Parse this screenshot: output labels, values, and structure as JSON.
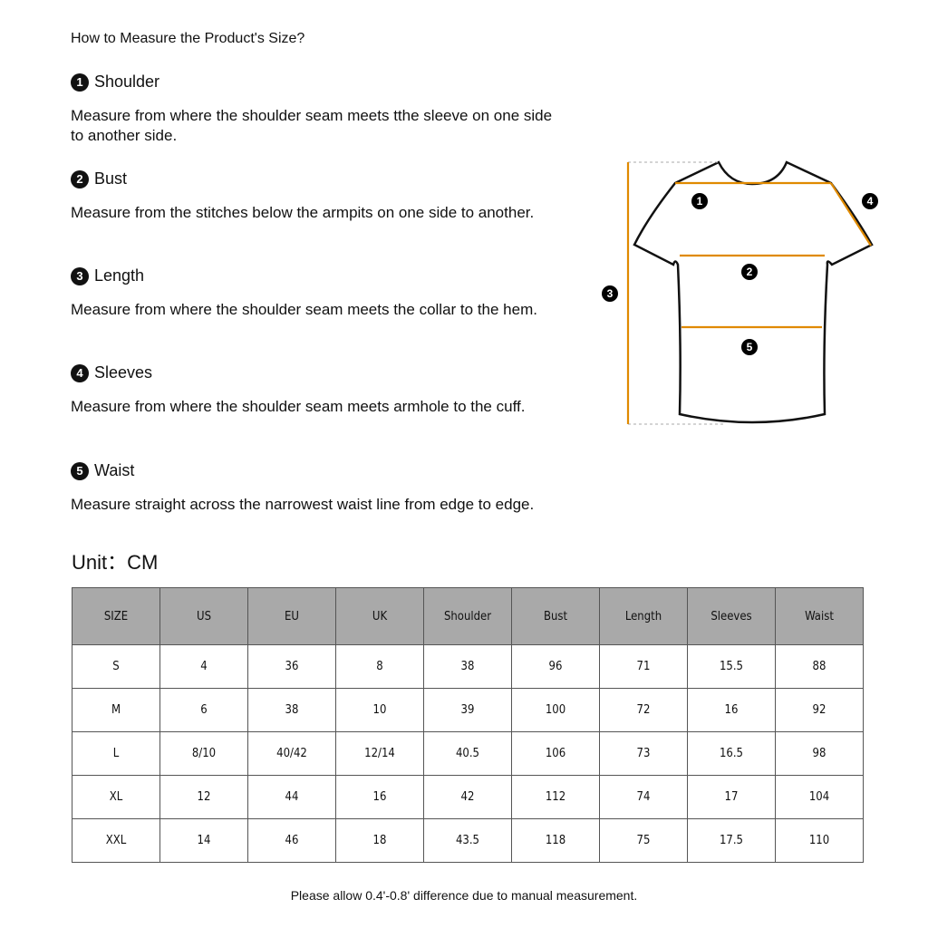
{
  "title": "How to Measure the Product's Size?",
  "sections": [
    {
      "num": "1",
      "heading": "Shoulder",
      "text": "Measure from where the shoulder seam meets tthe sleeve on one side to another side."
    },
    {
      "num": "2",
      "heading": "Bust",
      "text": "Measure from the stitches below the armpits on one side to another."
    },
    {
      "num": "3",
      "heading": "Length",
      "text": "Measure from where the shoulder seam meets the collar to the hem."
    },
    {
      "num": "4",
      "heading": "Sleeves",
      "text": "Measure from where the shoulder seam meets armhole to the cuff."
    },
    {
      "num": "5",
      "heading": "Waist",
      "text": "Measure straight across the narrowest waist line from edge to edge."
    }
  ],
  "unit": "Unit：CM",
  "table": {
    "headers": [
      "SIZE",
      "US",
      "EU",
      "UK",
      "Shoulder",
      "Bust",
      "Length",
      "Sleeves",
      "Waist"
    ],
    "rows": [
      [
        "S",
        "4",
        "36",
        "8",
        "38",
        "96",
        "71",
        "15.5",
        "88"
      ],
      [
        "M",
        "6",
        "38",
        "10",
        "39",
        "100",
        "72",
        "16",
        "92"
      ],
      [
        "L",
        "8/10",
        "40/42",
        "12/14",
        "40.5",
        "106",
        "73",
        "16.5",
        "98"
      ],
      [
        "XL",
        "12",
        "44",
        "16",
        "42",
        "112",
        "74",
        "17",
        "104"
      ],
      [
        "XXL",
        "14",
        "46",
        "18",
        "43.5",
        "118",
        "75",
        "17.5",
        "110"
      ]
    ]
  },
  "diagram_labels": [
    "1",
    "2",
    "3",
    "4",
    "5"
  ],
  "colors": {
    "measure_line": "#e08a00",
    "header_bg": "#a9a9a9"
  },
  "note": "Please allow 0.4'-0.8' difference due to manual measurement."
}
